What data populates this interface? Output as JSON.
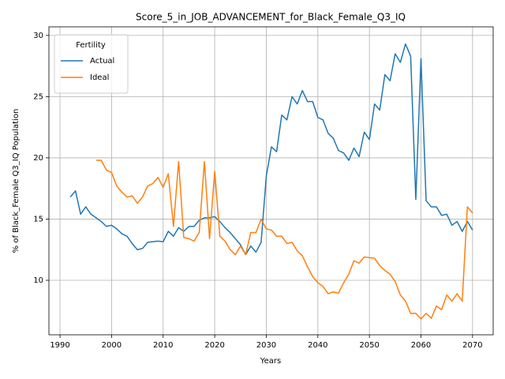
{
  "chart_data": {
    "type": "line",
    "title": "Score_5_in_JOB_ADVANCEMENT_for_Black_Female_Q3_IQ",
    "x_label": "Years",
    "y_label": "% of Black_Female Q3_IQ Population",
    "legend_title": "Fertility",
    "legend_position": "upper left",
    "grid": true,
    "xlim": [
      1987.85,
      2074.0
    ],
    "ylim": [
      5.55,
      30.7
    ],
    "xticks": [
      1990,
      2000,
      2010,
      2020,
      2030,
      2040,
      2050,
      2060,
      2070
    ],
    "yticks": [
      10,
      15,
      20,
      25,
      30
    ],
    "series": [
      {
        "name": "Actual",
        "color": "#1f77b4",
        "x": [
          1992,
          1993,
          1994,
          1995,
          1996,
          1997,
          1998,
          1999,
          2000,
          2001,
          2002,
          2003,
          2004,
          2005,
          2006,
          2007,
          2008,
          2009,
          2010,
          2011,
          2012,
          2013,
          2014,
          2015,
          2016,
          2017,
          2018,
          2019,
          2020,
          2021,
          2022,
          2023,
          2024,
          2025,
          2026,
          2027,
          2028,
          2029,
          2030,
          2031,
          2032,
          2033,
          2034,
          2035,
          2036,
          2037,
          2038,
          2039,
          2040,
          2041,
          2042,
          2043,
          2044,
          2045,
          2046,
          2047,
          2048,
          2049,
          2050,
          2051,
          2052,
          2053,
          2054,
          2055,
          2056,
          2057,
          2058,
          2059,
          2060,
          2061,
          2062,
          2063,
          2064,
          2065,
          2066,
          2067,
          2068,
          2069,
          2070
        ],
        "values": [
          16.8,
          17.3,
          15.4,
          16.0,
          15.4,
          15.1,
          14.8,
          14.4,
          14.5,
          14.2,
          13.8,
          13.6,
          13.0,
          12.5,
          12.6,
          13.1,
          13.15,
          13.2,
          13.15,
          14.0,
          13.6,
          14.3,
          14.0,
          14.4,
          14.4,
          14.9,
          15.1,
          15.1,
          15.2,
          14.8,
          14.3,
          13.9,
          13.4,
          12.9,
          12.1,
          12.8,
          12.3,
          13.1,
          18.5,
          20.9,
          20.5,
          23.5,
          23.1,
          25.0,
          24.4,
          25.5,
          24.6,
          24.6,
          23.3,
          23.1,
          22.0,
          21.6,
          20.6,
          20.4,
          19.8,
          20.8,
          20.1,
          22.1,
          21.5,
          24.4,
          23.9,
          26.8,
          26.3,
          28.5,
          27.8,
          29.3,
          28.3,
          16.6,
          28.1,
          16.5,
          16.0,
          16.0,
          15.3,
          15.4,
          14.5,
          14.8,
          14.0,
          14.8,
          14.1
        ]
      },
      {
        "name": "Ideal",
        "color": "#ff7f0e",
        "x": [
          1997,
          1998,
          1999,
          2000,
          2001,
          2002,
          2003,
          2004,
          2005,
          2006,
          2007,
          2008,
          2009,
          2010,
          2011,
          2012,
          2013,
          2014,
          2015,
          2016,
          2017,
          2018,
          2019,
          2020,
          2021,
          2022,
          2023,
          2024,
          2025,
          2026,
          2027,
          2028,
          2029,
          2030,
          2031,
          2032,
          2033,
          2034,
          2035,
          2036,
          2037,
          2038,
          2039,
          2040,
          2041,
          2042,
          2043,
          2044,
          2045,
          2046,
          2047,
          2048,
          2049,
          2050,
          2051,
          2052,
          2053,
          2054,
          2055,
          2056,
          2057,
          2058,
          2059,
          2060,
          2061,
          2062,
          2063,
          2064,
          2065,
          2066,
          2067,
          2068,
          2069,
          2070
        ],
        "values": [
          19.8,
          19.8,
          19.0,
          18.8,
          17.7,
          17.2,
          16.8,
          16.9,
          16.3,
          16.8,
          17.7,
          17.9,
          18.4,
          17.6,
          18.7,
          14.4,
          19.7,
          13.5,
          13.4,
          13.2,
          13.9,
          19.7,
          13.4,
          18.9,
          13.6,
          13.2,
          12.5,
          12.1,
          12.8,
          12.1,
          13.9,
          13.9,
          15.0,
          14.2,
          14.1,
          13.6,
          13.6,
          13.0,
          13.1,
          12.4,
          12.0,
          11.1,
          10.3,
          9.8,
          9.5,
          8.9,
          9.05,
          8.95,
          9.8,
          10.5,
          11.6,
          11.4,
          11.9,
          11.85,
          11.8,
          11.2,
          10.8,
          10.5,
          9.9,
          8.8,
          8.3,
          7.3,
          7.3,
          6.85,
          7.3,
          6.9,
          7.9,
          7.6,
          8.8,
          8.3,
          8.9,
          8.3,
          16.0,
          15.5
        ]
      }
    ]
  }
}
